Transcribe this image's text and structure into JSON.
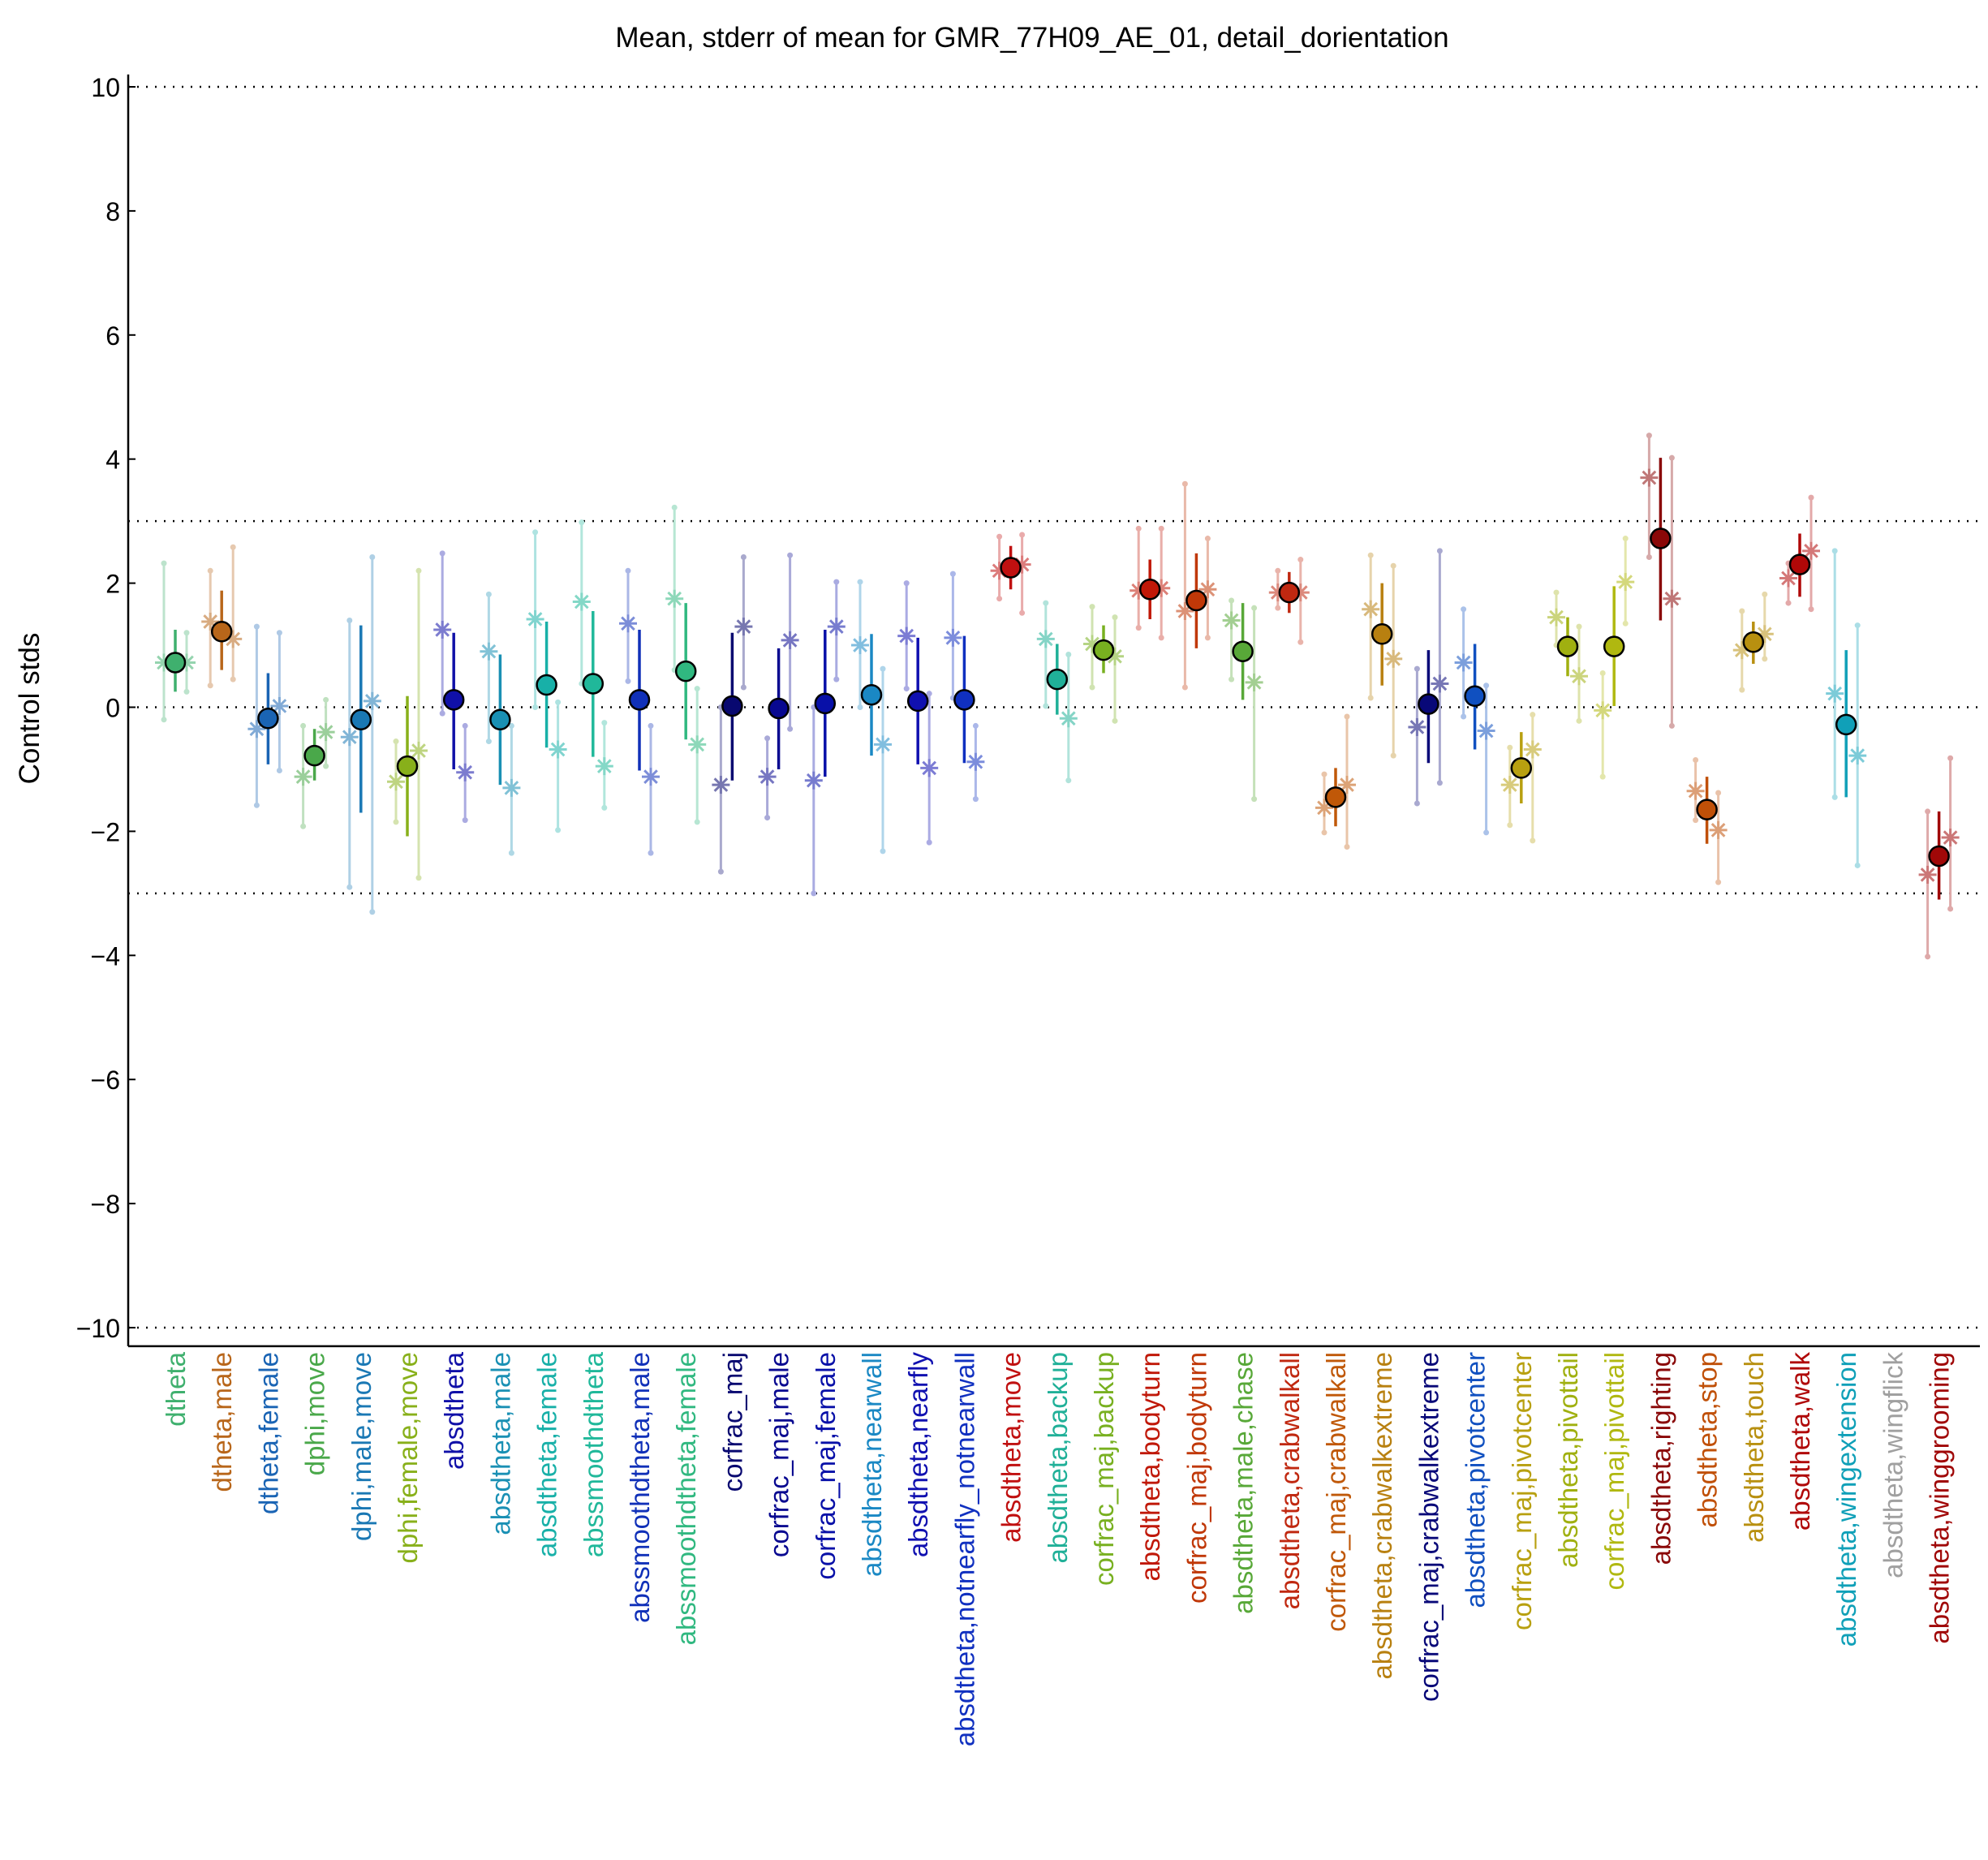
{
  "chart_data": {
    "type": "scatter",
    "title": "Mean, stderr of mean for GMR_77H09_AE_01, detail_dorientation",
    "xlabel": "",
    "ylabel": "Control stds",
    "ylim": [
      -10.3,
      10.2
    ],
    "yticks": [
      {
        "v": 10,
        "label": "10"
      },
      {
        "v": 8,
        "label": "8"
      },
      {
        "v": 6,
        "label": "6"
      },
      {
        "v": 4,
        "label": "4"
      },
      {
        "v": 2,
        "label": "2"
      },
      {
        "v": 0,
        "label": "0"
      },
      {
        "v": -2,
        "label": "−2"
      },
      {
        "v": -4,
        "label": "−4"
      },
      {
        "v": -6,
        "label": "−6"
      },
      {
        "v": -8,
        "label": "−8"
      },
      {
        "v": -10,
        "label": "−10"
      }
    ],
    "reference_lines": [
      10,
      3,
      0,
      -3,
      -10
    ],
    "grid": false,
    "legend": "none",
    "series_description": [
      "mean",
      "male mean (asterisk, left)",
      "female mean (asterisk, right)"
    ],
    "categories": [
      {
        "label": "dtheta",
        "color": "#3fb06e",
        "mean": 0.72,
        "lo": 0.25,
        "hi": 1.25,
        "male": 0.72,
        "male_lo": -0.2,
        "male_hi": 2.32,
        "female": 0.72,
        "female_lo": 0.25,
        "female_hi": 1.2
      },
      {
        "label": "dtheta,male",
        "color": "#b8661a",
        "mean": 1.22,
        "lo": 0.6,
        "hi": 1.88,
        "male": 1.38,
        "male_lo": 0.35,
        "male_hi": 2.2,
        "female": 1.1,
        "female_lo": 0.45,
        "female_hi": 2.58
      },
      {
        "label": "dtheta,female",
        "color": "#1a64b4",
        "mean": -0.18,
        "lo": -0.92,
        "hi": 0.55,
        "male": -0.35,
        "male_lo": -1.58,
        "male_hi": 1.3,
        "female": 0.02,
        "female_lo": -1.02,
        "female_hi": 1.2
      },
      {
        "label": "dphi,move",
        "color": "#4aa84a",
        "mean": -0.78,
        "lo": -1.18,
        "hi": -0.35,
        "male": -1.12,
        "male_lo": -1.92,
        "male_hi": -0.3,
        "female": -0.4,
        "female_lo": -0.95,
        "female_hi": 0.12
      },
      {
        "label": "dphi,male,move",
        "color": "#1a78b4",
        "mean": -0.2,
        "lo": -1.7,
        "hi": 1.32,
        "male": -0.48,
        "male_lo": -2.9,
        "male_hi": 1.4,
        "female": 0.1,
        "female_lo": -3.3,
        "female_hi": 2.42
      },
      {
        "label": "dphi,female,move",
        "color": "#88b01a",
        "mean": -0.95,
        "lo": -2.08,
        "hi": 0.18,
        "male": -1.2,
        "male_lo": -1.85,
        "male_hi": -0.55,
        "female": -0.7,
        "female_lo": -2.75,
        "female_hi": 2.2
      },
      {
        "label": "absdtheta",
        "color": "#1010a8",
        "mean": 0.12,
        "lo": -1.0,
        "hi": 1.2,
        "male": 1.25,
        "male_lo": -0.1,
        "male_hi": 2.48,
        "female": -1.05,
        "female_lo": -1.82,
        "female_hi": -0.3
      },
      {
        "label": "absdtheta,male",
        "color": "#1a90b4",
        "mean": -0.2,
        "lo": -1.25,
        "hi": 0.85,
        "male": 0.9,
        "male_lo": -0.55,
        "male_hi": 1.82,
        "female": -1.3,
        "female_lo": -2.35,
        "female_hi": -0.3
      },
      {
        "label": "absdtheta,female",
        "color": "#18b0a8",
        "mean": 0.36,
        "lo": -0.65,
        "hi": 1.38,
        "male": 1.42,
        "male_lo": 0.0,
        "male_hi": 2.82,
        "female": -0.68,
        "female_lo": -1.98,
        "female_hi": 0.08
      },
      {
        "label": "abssmoothdtheta",
        "color": "#20b89a",
        "mean": 0.38,
        "lo": -0.8,
        "hi": 1.55,
        "male": 1.7,
        "male_lo": 0.38,
        "male_hi": 2.98,
        "female": -0.95,
        "female_lo": -1.62,
        "female_hi": -0.25
      },
      {
        "label": "abssmoothdtheta,male",
        "color": "#1030b8",
        "mean": 0.12,
        "lo": -1.02,
        "hi": 1.25,
        "male": 1.35,
        "male_lo": 0.42,
        "male_hi": 2.2,
        "female": -1.12,
        "female_lo": -2.35,
        "female_hi": -0.3
      },
      {
        "label": "abssmoothdtheta,female",
        "color": "#30b880",
        "mean": 0.58,
        "lo": -0.52,
        "hi": 1.68,
        "male": 1.75,
        "male_lo": 0.6,
        "male_hi": 3.22,
        "female": -0.6,
        "female_lo": -1.85,
        "female_hi": 0.3
      },
      {
        "label": "corfrac_maj",
        "color": "#080870",
        "mean": 0.02,
        "lo": -1.18,
        "hi": 1.2,
        "male": -1.25,
        "male_lo": -2.65,
        "male_hi": 0.0,
        "female": 1.3,
        "female_lo": 0.32,
        "female_hi": 2.42
      },
      {
        "label": "corfrac_maj,male",
        "color": "#080890",
        "mean": -0.02,
        "lo": -1.0,
        "hi": 0.95,
        "male": -1.12,
        "male_lo": -1.78,
        "male_hi": -0.5,
        "female": 1.08,
        "female_lo": -0.35,
        "female_hi": 2.45
      },
      {
        "label": "corfrac_maj,female",
        "color": "#0810a8",
        "mean": 0.06,
        "lo": -1.12,
        "hi": 1.25,
        "male": -1.18,
        "male_lo": -3.0,
        "male_hi": 0.0,
        "female": 1.3,
        "female_lo": 0.45,
        "female_hi": 2.02
      },
      {
        "label": "absdtheta,nearwall",
        "color": "#1a88c4",
        "mean": 0.2,
        "lo": -0.78,
        "hi": 1.18,
        "male": 1.0,
        "male_lo": 0.0,
        "male_hi": 2.02,
        "female": -0.6,
        "female_lo": -2.32,
        "female_hi": 0.62
      },
      {
        "label": "absdtheta,nearfly",
        "color": "#1010b0",
        "mean": 0.1,
        "lo": -0.92,
        "hi": 1.12,
        "male": 1.15,
        "male_lo": 0.3,
        "male_hi": 2.0,
        "female": -0.98,
        "female_lo": -2.18,
        "female_hi": 0.22
      },
      {
        "label": "absdtheta,notnearfly_notnearwall",
        "color": "#1030c0",
        "mean": 0.12,
        "lo": -0.9,
        "hi": 1.15,
        "male": 1.12,
        "male_lo": 0.15,
        "male_hi": 2.15,
        "female": -0.88,
        "female_lo": -1.48,
        "female_hi": -0.3
      },
      {
        "label": "absdtheta,move",
        "color": "#c01010",
        "mean": 2.25,
        "lo": 1.9,
        "hi": 2.6,
        "male": 2.2,
        "male_lo": 1.75,
        "male_hi": 2.75,
        "female": 2.3,
        "female_lo": 1.52,
        "female_hi": 2.78
      },
      {
        "label": "absdtheta,backup",
        "color": "#20b098",
        "mean": 0.45,
        "lo": -0.12,
        "hi": 1.02,
        "male": 1.1,
        "male_lo": 0.02,
        "male_hi": 1.68,
        "female": -0.18,
        "female_lo": -1.18,
        "female_hi": 0.85
      },
      {
        "label": "corfrac_maj,backup",
        "color": "#78b020",
        "mean": 0.92,
        "lo": 0.55,
        "hi": 1.32,
        "male": 1.02,
        "male_lo": 0.32,
        "male_hi": 1.62,
        "female": 0.82,
        "female_lo": -0.22,
        "female_hi": 1.45
      },
      {
        "label": "absdtheta,bodyturn",
        "color": "#c01808",
        "mean": 1.9,
        "lo": 1.42,
        "hi": 2.38,
        "male": 1.88,
        "male_lo": 1.28,
        "male_hi": 2.88,
        "female": 1.92,
        "female_lo": 1.12,
        "female_hi": 2.88
      },
      {
        "label": "corfrac_maj,bodyturn",
        "color": "#c03808",
        "mean": 1.72,
        "lo": 0.95,
        "hi": 2.48,
        "male": 1.55,
        "male_lo": 0.32,
        "male_hi": 3.6,
        "female": 1.9,
        "female_lo": 1.12,
        "female_hi": 2.72
      },
      {
        "label": "absdtheta,male,chase",
        "color": "#58a838",
        "mean": 0.9,
        "lo": 0.12,
        "hi": 1.68,
        "male": 1.4,
        "male_lo": 0.45,
        "male_hi": 1.72,
        "female": 0.4,
        "female_lo": -1.48,
        "female_hi": 1.6
      },
      {
        "label": "absdtheta,crabwalkall",
        "color": "#c02810",
        "mean": 1.85,
        "lo": 1.52,
        "hi": 2.18,
        "male": 1.85,
        "male_lo": 1.6,
        "male_hi": 2.2,
        "female": 1.85,
        "female_lo": 1.05,
        "female_hi": 2.38
      },
      {
        "label": "corfrac_maj,crabwalkall",
        "color": "#c05808",
        "mean": -1.45,
        "lo": -1.92,
        "hi": -0.98,
        "male": -1.62,
        "male_lo": -2.02,
        "male_hi": -1.08,
        "female": -1.25,
        "female_lo": -2.25,
        "female_hi": -0.15
      },
      {
        "label": "absdtheta,crabwalkextreme",
        "color": "#b88010",
        "mean": 1.18,
        "lo": 0.35,
        "hi": 2.0,
        "male": 1.58,
        "male_lo": 0.15,
        "male_hi": 2.45,
        "female": 0.78,
        "female_lo": -0.78,
        "female_hi": 2.28
      },
      {
        "label": "corfrac_maj,crabwalkextreme",
        "color": "#080878",
        "mean": 0.05,
        "lo": -0.9,
        "hi": 0.92,
        "male": -0.32,
        "male_lo": -1.55,
        "male_hi": 0.62,
        "female": 0.38,
        "female_lo": -1.22,
        "female_hi": 2.52
      },
      {
        "label": "absdtheta,pivotcenter",
        "color": "#1050c0",
        "mean": 0.18,
        "lo": -0.68,
        "hi": 1.02,
        "male": 0.72,
        "male_lo": -0.15,
        "male_hi": 1.58,
        "female": -0.38,
        "female_lo": -2.02,
        "female_hi": 0.35
      },
      {
        "label": "corfrac_maj,pivotcenter",
        "color": "#b8a010",
        "mean": -0.98,
        "lo": -1.55,
        "hi": -0.4,
        "male": -1.25,
        "male_lo": -1.9,
        "male_hi": -0.65,
        "female": -0.68,
        "female_lo": -2.15,
        "female_hi": -0.12
      },
      {
        "label": "absdtheta,pivottail",
        "color": "#a0b010",
        "mean": 0.98,
        "lo": 0.5,
        "hi": 1.45,
        "male": 1.45,
        "male_lo": 1.0,
        "male_hi": 1.85,
        "female": 0.5,
        "female_lo": -0.22,
        "female_hi": 1.3
      },
      {
        "label": "corfrac_maj,pivottail",
        "color": "#b0b810",
        "mean": 0.98,
        "lo": 0.02,
        "hi": 1.95,
        "male": -0.05,
        "male_lo": -1.12,
        "male_hi": 0.55,
        "female": 2.02,
        "female_lo": 1.35,
        "female_hi": 2.72
      },
      {
        "label": "absdtheta,righting",
        "color": "#8a0808",
        "mean": 2.72,
        "lo": 1.4,
        "hi": 4.02,
        "male": 3.7,
        "male_lo": 2.42,
        "male_hi": 4.38,
        "female": 1.75,
        "female_lo": -0.3,
        "female_hi": 4.02
      },
      {
        "label": "absdtheta,stop",
        "color": "#c05008",
        "mean": -1.65,
        "lo": -2.2,
        "hi": -1.12,
        "male": -1.35,
        "male_lo": -1.82,
        "male_hi": -0.85,
        "female": -1.98,
        "female_lo": -2.82,
        "female_hi": -1.38
      },
      {
        "label": "absdtheta,touch",
        "color": "#b89010",
        "mean": 1.05,
        "lo": 0.7,
        "hi": 1.38,
        "male": 0.92,
        "male_lo": 0.28,
        "male_hi": 1.55,
        "female": 1.18,
        "female_lo": 0.78,
        "female_hi": 1.82
      },
      {
        "label": "absdtheta,walk",
        "color": "#b00808",
        "mean": 2.3,
        "lo": 1.78,
        "hi": 2.8,
        "male": 2.08,
        "male_lo": 1.68,
        "male_hi": 2.32,
        "female": 2.52,
        "female_lo": 1.58,
        "female_hi": 3.38
      },
      {
        "label": "absdtheta,wingextension",
        "color": "#10a0b8",
        "mean": -0.28,
        "lo": -1.45,
        "hi": 0.92,
        "male": 0.22,
        "male_lo": -1.45,
        "male_hi": 2.52,
        "female": -0.78,
        "female_lo": -2.55,
        "female_hi": 1.32
      },
      {
        "label": "absdtheta,wingflick",
        "color": "#a0a0a0"
      },
      {
        "label": "absdtheta,winggrooming",
        "color": "#a00808",
        "mean": -2.4,
        "lo": -3.1,
        "hi": -1.68,
        "male": -2.7,
        "male_lo": -4.02,
        "male_hi": -1.68,
        "female": -2.1,
        "female_lo": -3.25,
        "female_hi": -0.82
      }
    ]
  }
}
